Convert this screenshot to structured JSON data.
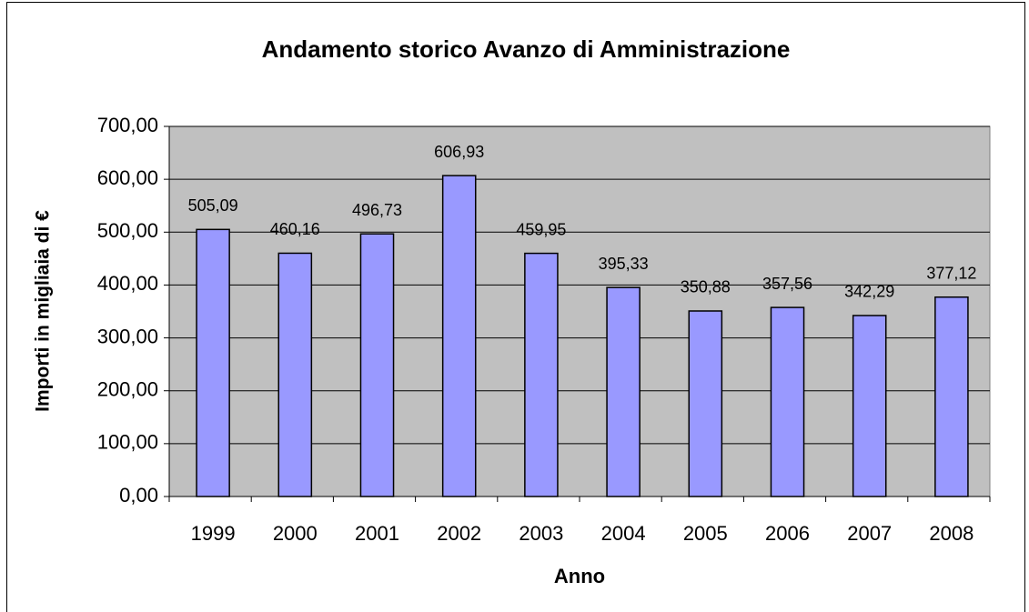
{
  "chart_data": {
    "type": "bar",
    "title": "Andamento storico Avanzo di Amministrazione",
    "x_label": "Anno",
    "y_label": "Importi in migliaia di €",
    "categories": [
      "1999",
      "2000",
      "2001",
      "2002",
      "2003",
      "2004",
      "2005",
      "2006",
      "2007",
      "2008"
    ],
    "values": [
      505.09,
      460.16,
      496.73,
      606.93,
      459.95,
      395.33,
      350.88,
      357.56,
      342.29,
      377.12
    ],
    "value_labels": [
      "505,09",
      "460,16",
      "496,73",
      "606,93",
      "459,95",
      "395,33",
      "350,88",
      "357,56",
      "342,29",
      "377,12"
    ],
    "color": "#9999ff",
    "ylim": [
      0,
      700
    ],
    "yticks": [
      {
        "value": 0,
        "label": "0,00"
      },
      {
        "value": 100,
        "label": "100,00"
      },
      {
        "value": 200,
        "label": "200,00"
      },
      {
        "value": 300,
        "label": "300,00"
      },
      {
        "value": 400,
        "label": "400,00"
      },
      {
        "value": 500,
        "label": "500,00"
      },
      {
        "value": 600,
        "label": "600,00"
      },
      {
        "value": 700,
        "label": "700,00"
      }
    ],
    "grid": true
  }
}
